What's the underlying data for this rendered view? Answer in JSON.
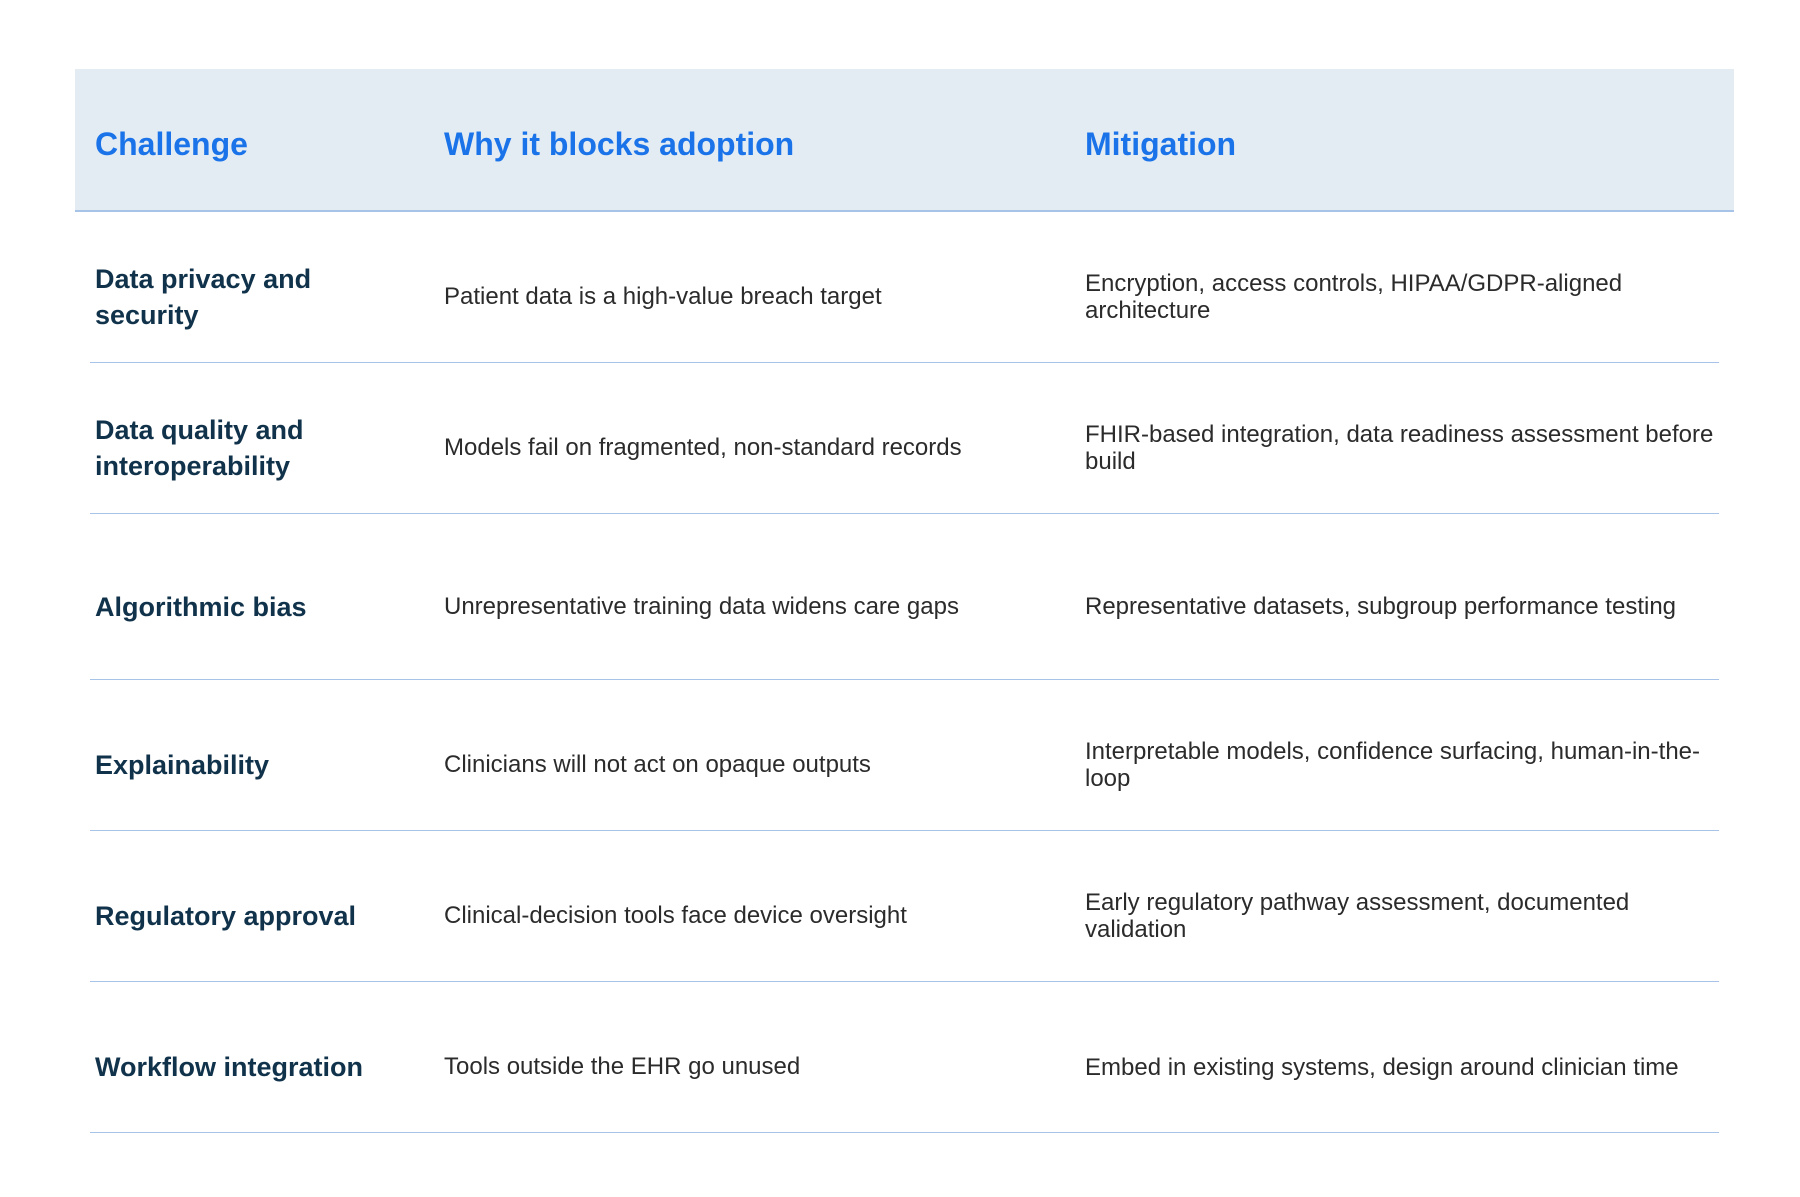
{
  "table": {
    "headers": [
      "Challenge",
      "Why it blocks adoption",
      "Mitigation"
    ],
    "rows": [
      {
        "challenge": "Data privacy and security",
        "why": "Patient data is a high-value breach target",
        "mitigation": "Encryption, access controls, HIPAA/GDPR-aligned architecture"
      },
      {
        "challenge": "Data quality and interoperability",
        "why": "Models fail on fragmented, non-standard records",
        "mitigation": "FHIR-based integration, data readiness assessment before build"
      },
      {
        "challenge": "Algorithmic bias",
        "why": "Unrepresentative training data widens care gaps",
        "mitigation": "Representative datasets, subgroup performance testing"
      },
      {
        "challenge": "Explainability",
        "why": "Clinicians will not act on opaque outputs",
        "mitigation": "Interpretable models, confidence surfacing, human-in-the-loop"
      },
      {
        "challenge": "Regulatory approval",
        "why": "Clinical-decision tools face device oversight",
        "mitigation": "Early regulatory pathway assessment, documented validation"
      },
      {
        "challenge": "Workflow integration",
        "why": "Tools outside the EHR go unused",
        "mitigation": "Embed in existing systems, design around clinician time"
      }
    ]
  },
  "colors": {
    "header_bg": "#e4ecf3",
    "header_text": "#1a73e8",
    "challenge_text": "#10324a",
    "body_text": "#2b2b2b",
    "rule": "#a8c3e8"
  }
}
